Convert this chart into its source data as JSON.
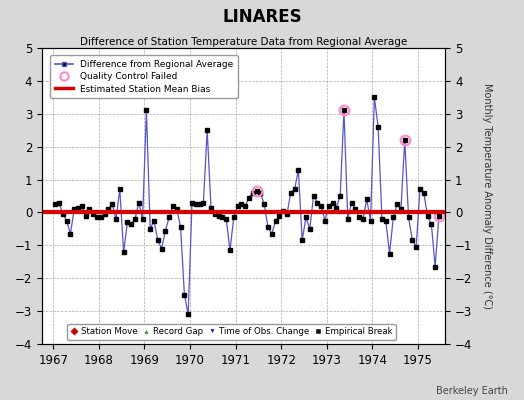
{
  "title": "LINARES",
  "subtitle": "Difference of Station Temperature Data from Regional Average",
  "ylabel_right": "Monthly Temperature Anomaly Difference (°C)",
  "xlim": [
    1966.75,
    1975.6
  ],
  "ylim": [
    -4,
    5
  ],
  "yticks": [
    -4,
    -3,
    -2,
    -1,
    0,
    1,
    2,
    3,
    4,
    5
  ],
  "xticks": [
    1967,
    1968,
    1969,
    1970,
    1971,
    1972,
    1973,
    1974,
    1975
  ],
  "bias_line": 0.0,
  "background_color": "#d8d8d8",
  "plot_bg_color": "#ffffff",
  "line_color": "#5555cc",
  "marker_color": "#000000",
  "bias_color": "#dd0000",
  "qc_fail_color": "#ff88cc",
  "watermark": "Berkeley Earth",
  "time_series": [
    1967.042,
    1967.125,
    1967.208,
    1967.292,
    1967.375,
    1967.458,
    1967.542,
    1967.625,
    1967.708,
    1967.792,
    1967.875,
    1967.958,
    1968.042,
    1968.125,
    1968.208,
    1968.292,
    1968.375,
    1968.458,
    1968.542,
    1968.625,
    1968.708,
    1968.792,
    1968.875,
    1968.958,
    1969.042,
    1969.125,
    1969.208,
    1969.292,
    1969.375,
    1969.458,
    1969.542,
    1969.625,
    1969.708,
    1969.792,
    1969.875,
    1969.958,
    1970.042,
    1970.125,
    1970.208,
    1970.292,
    1970.375,
    1970.458,
    1970.542,
    1970.625,
    1970.708,
    1970.792,
    1970.875,
    1970.958,
    1971.042,
    1971.125,
    1971.208,
    1971.292,
    1971.375,
    1971.458,
    1971.542,
    1971.625,
    1971.708,
    1971.792,
    1971.875,
    1971.958,
    1972.042,
    1972.125,
    1972.208,
    1972.292,
    1972.375,
    1972.458,
    1972.542,
    1972.625,
    1972.708,
    1972.792,
    1972.875,
    1972.958,
    1973.042,
    1973.125,
    1973.208,
    1973.292,
    1973.375,
    1973.458,
    1973.542,
    1973.625,
    1973.708,
    1973.792,
    1973.875,
    1973.958,
    1974.042,
    1974.125,
    1974.208,
    1974.292,
    1974.375,
    1974.458,
    1974.542,
    1974.625,
    1974.708,
    1974.792,
    1974.875,
    1974.958,
    1975.042,
    1975.125,
    1975.208,
    1975.292,
    1975.375,
    1975.458
  ],
  "values": [
    0.25,
    0.3,
    -0.05,
    -0.25,
    -0.65,
    0.1,
    0.15,
    0.2,
    -0.1,
    0.1,
    -0.05,
    -0.15,
    -0.15,
    -0.05,
    0.1,
    0.25,
    -0.2,
    0.7,
    -1.2,
    -0.3,
    -0.35,
    -0.2,
    0.3,
    -0.2,
    3.1,
    -0.5,
    -0.25,
    -0.85,
    -1.1,
    -0.55,
    -0.15,
    0.2,
    0.1,
    -0.45,
    -2.5,
    -3.1,
    0.3,
    0.25,
    0.25,
    0.3,
    2.5,
    0.15,
    -0.05,
    -0.1,
    -0.15,
    -0.2,
    -1.15,
    -0.15,
    0.2,
    0.25,
    0.2,
    0.45,
    0.6,
    0.65,
    0.6,
    0.25,
    -0.45,
    -0.65,
    -0.25,
    -0.1,
    0.05,
    -0.05,
    0.6,
    0.7,
    1.3,
    -0.85,
    -0.15,
    -0.5,
    0.5,
    0.3,
    0.2,
    -0.25,
    0.2,
    0.3,
    0.15,
    0.5,
    3.1,
    -0.2,
    0.3,
    0.1,
    -0.15,
    -0.2,
    0.4,
    -0.25,
    3.5,
    2.6,
    -0.2,
    -0.25,
    -1.25,
    -0.15,
    0.25,
    0.1,
    2.2,
    -0.15,
    -0.85,
    -1.05,
    0.7,
    0.6,
    -0.1,
    -0.35,
    -1.65,
    -0.1
  ],
  "qc_fail_times": [
    1971.458,
    1973.375,
    1974.708,
    1975.458
  ],
  "qc_fail_values": [
    0.65,
    3.1,
    2.2,
    -0.1
  ]
}
